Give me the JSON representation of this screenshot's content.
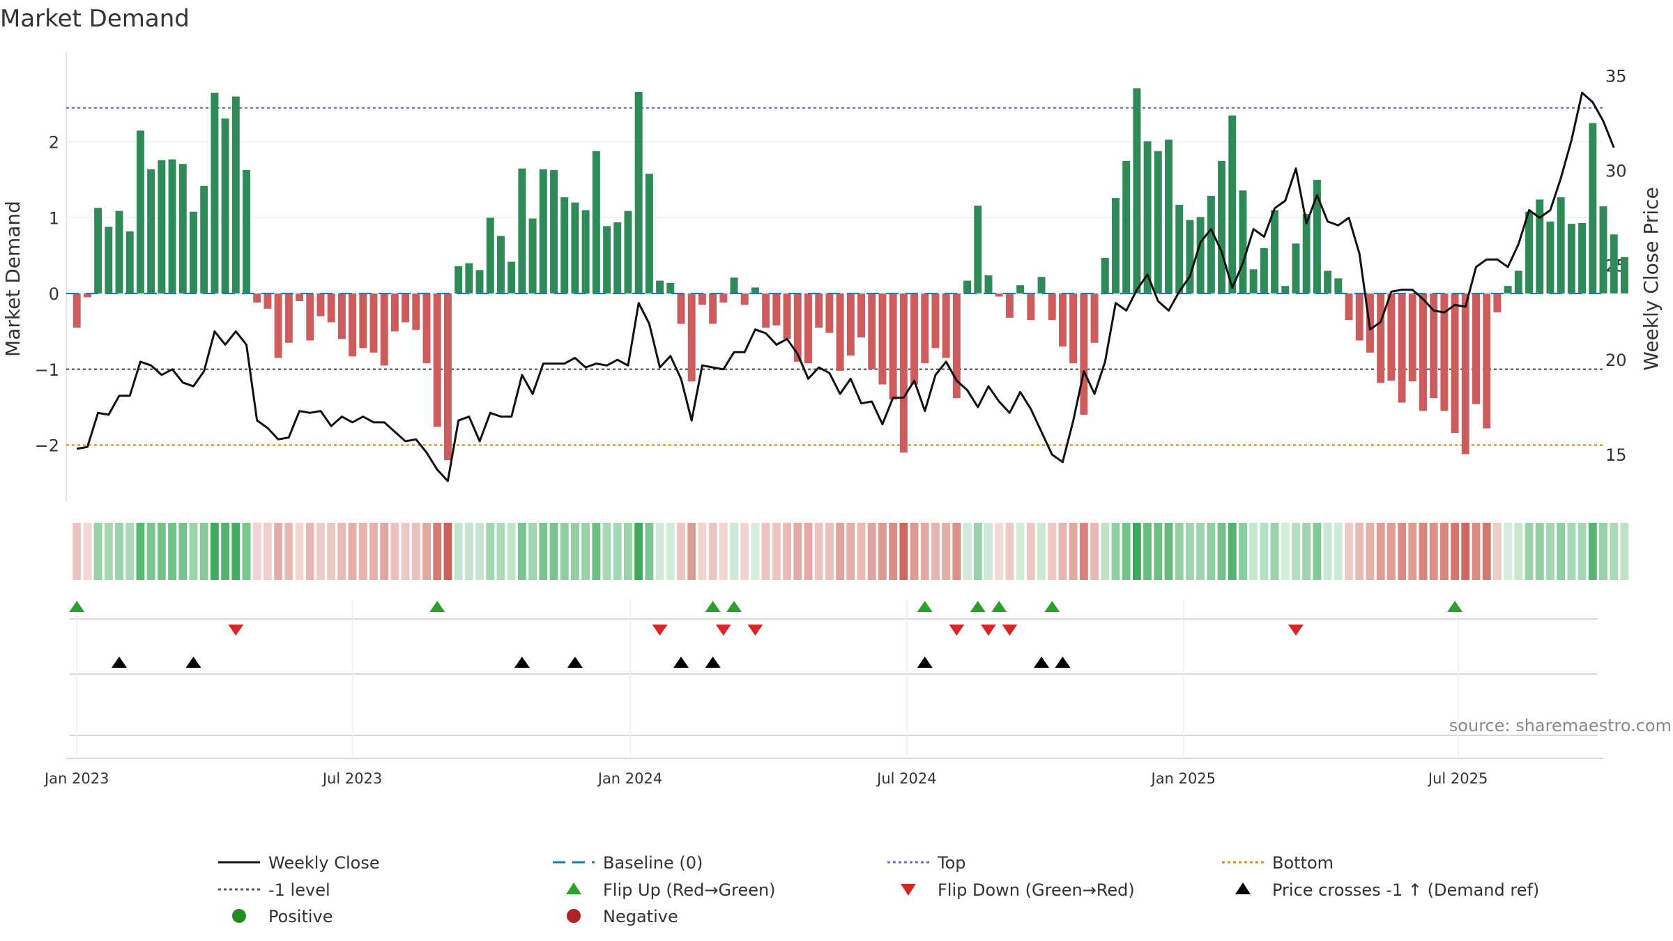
{
  "chart_data": {
    "type": "bar",
    "title": "Market Demand",
    "ylabel_left": "Market Demand",
    "ylabel_right": "Weekly Close Price",
    "source": "source: sharemaestro.com",
    "demand_ylim": [
      -2.75,
      3.0
    ],
    "price_ylim": [
      12.5,
      35.5
    ],
    "left_ticks": [
      2,
      1,
      0,
      -1,
      -2
    ],
    "left_tick_labels": [
      "2",
      "1",
      "0",
      "−1",
      "−2"
    ],
    "right_ticks": [
      35,
      30,
      25,
      20,
      15
    ],
    "right_tick_labels": [
      "35",
      "30",
      "25",
      "20",
      "15"
    ],
    "x_start_week": -1,
    "x_end_week": 144,
    "x_ticks": [
      {
        "week": 0,
        "label": "Jan 2023"
      },
      {
        "week": 26,
        "label": "Jul 2023"
      },
      {
        "week": 52.2,
        "label": "Jan 2024"
      },
      {
        "week": 78.3,
        "label": "Jul 2024"
      },
      {
        "week": 104.4,
        "label": "Jan 2025"
      },
      {
        "week": 130.3,
        "label": "Jul 2025"
      }
    ],
    "ref_lines": {
      "top": 2.45,
      "minus_one": -1,
      "bottom": -2.0,
      "baseline": 0
    },
    "demand": [
      -0.45,
      -0.05,
      1.13,
      0.88,
      1.09,
      0.82,
      2.15,
      1.64,
      1.76,
      1.77,
      1.71,
      1.08,
      1.42,
      2.65,
      2.31,
      2.6,
      1.63,
      -0.12,
      -0.2,
      -0.85,
      -0.65,
      -0.1,
      -0.62,
      -0.3,
      -0.38,
      -0.6,
      -0.83,
      -0.72,
      -0.78,
      -0.95,
      -0.5,
      -0.38,
      -0.48,
      -0.92,
      -1.76,
      -2.2,
      0.36,
      0.4,
      0.31,
      1.0,
      0.76,
      0.42,
      1.65,
      0.99,
      1.64,
      1.63,
      1.27,
      1.2,
      1.1,
      1.88,
      0.89,
      0.94,
      1.09,
      2.66,
      1.58,
      0.17,
      0.14,
      -0.4,
      -1.16,
      -0.15,
      -0.4,
      -0.12,
      0.21,
      -0.15,
      0.08,
      -0.45,
      -0.42,
      -0.6,
      -0.9,
      -0.92,
      -0.45,
      -0.52,
      -1.02,
      -0.82,
      -0.58,
      -1.0,
      -1.2,
      -1.4,
      -2.1,
      -1.2,
      -0.92,
      -0.72,
      -0.85,
      -1.38,
      0.17,
      1.16,
      0.24,
      -0.04,
      -0.32,
      0.11,
      -0.35,
      0.22,
      -0.35,
      -0.7,
      -0.92,
      -1.6,
      -0.65,
      0.47,
      1.26,
      1.75,
      2.71,
      2.01,
      1.88,
      2.03,
      1.17,
      0.97,
      1.01,
      1.29,
      1.75,
      2.35,
      1.36,
      0.32,
      0.6,
      1.1,
      0.1,
      0.66,
      1.05,
      1.5,
      0.3,
      0.2,
      -0.35,
      -0.62,
      -0.78,
      -1.18,
      -1.15,
      -1.44,
      -1.16,
      -1.55,
      -1.38,
      -1.55,
      -1.84,
      -2.12,
      -1.46,
      -1.78,
      -0.25,
      0.1,
      0.3,
      1.08,
      1.24,
      0.95,
      1.27,
      0.92,
      0.93,
      2.25,
      1.15,
      0.78,
      0.48
    ],
    "price": [
      15.3,
      15.4,
      17.2,
      17.1,
      18.1,
      18.1,
      19.9,
      19.7,
      19.2,
      19.5,
      18.8,
      18.6,
      19.4,
      21.5,
      20.8,
      21.5,
      20.8,
      16.8,
      16.4,
      15.8,
      15.9,
      17.3,
      17.2,
      17.3,
      16.5,
      17.0,
      16.7,
      17.0,
      16.7,
      16.7,
      16.2,
      15.7,
      15.8,
      15.1,
      14.2,
      13.6,
      16.8,
      17.0,
      15.7,
      17.2,
      17.0,
      17.0,
      19.2,
      18.2,
      19.8,
      19.8,
      19.8,
      20.1,
      19.6,
      19.8,
      19.7,
      20.0,
      19.7,
      23.0,
      21.9,
      19.6,
      20.2,
      19.0,
      16.8,
      19.7,
      19.6,
      19.5,
      20.4,
      20.4,
      21.6,
      21.4,
      20.8,
      21.1,
      20.3,
      19.0,
      19.6,
      19.3,
      18.2,
      19.0,
      17.7,
      17.8,
      16.6,
      18.0,
      18.0,
      18.9,
      17.3,
      19.2,
      19.9,
      18.9,
      18.4,
      17.5,
      18.6,
      17.8,
      17.2,
      18.3,
      17.4,
      16.2,
      15.0,
      14.6,
      16.8,
      19.4,
      18.2,
      19.9,
      23.0,
      22.6,
      23.7,
      24.5,
      23.1,
      22.6,
      23.6,
      24.4,
      26.2,
      26.9,
      25.7,
      23.8,
      25.1,
      26.9,
      26.5,
      28.0,
      28.4,
      30.1,
      27.2,
      28.7,
      27.3,
      27.1,
      27.5,
      25.6,
      21.6,
      22.0,
      23.6,
      23.7,
      23.7,
      23.2,
      22.6,
      22.5,
      22.9,
      22.8,
      24.9,
      25.3,
      25.3,
      24.9,
      26.1,
      27.9,
      27.5,
      27.9,
      29.6,
      31.6,
      34.1,
      33.6,
      32.6,
      31.2
    ],
    "flip_up_weeks": [
      0,
      34,
      60,
      62,
      80,
      85,
      87,
      92,
      130
    ],
    "flip_down_weeks": [
      15,
      55,
      61,
      64,
      83,
      86,
      88,
      115
    ],
    "price_cross_weeks": [
      4,
      11,
      42,
      47,
      57,
      60,
      80,
      91,
      93
    ]
  },
  "legend": {
    "weekly_close": "Weekly Close",
    "baseline": "Baseline (0)",
    "top": "Top",
    "bottom": "Bottom",
    "minus_one": "-1 level",
    "flip_up": "Flip Up (Red→Green)",
    "flip_down": "Flip Down (Green→Red)",
    "price_cross": "Price crosses -1 ↑ (Demand ref)",
    "positive": "Positive",
    "negative": "Negative"
  },
  "colors": {
    "positive_bar": "#2e8b57",
    "negative_bar": "#cd5c5c",
    "price_line": "#111111",
    "baseline": "#1f77b4",
    "top_line": "#6a6adf",
    "minus_one_line": "#555555",
    "bottom_line": "#e08a1e",
    "flip_up": "#2ca02c",
    "flip_down": "#d62728",
    "price_cross": "#000000",
    "positive_dot": "#228b22",
    "negative_dot": "#b22222"
  }
}
